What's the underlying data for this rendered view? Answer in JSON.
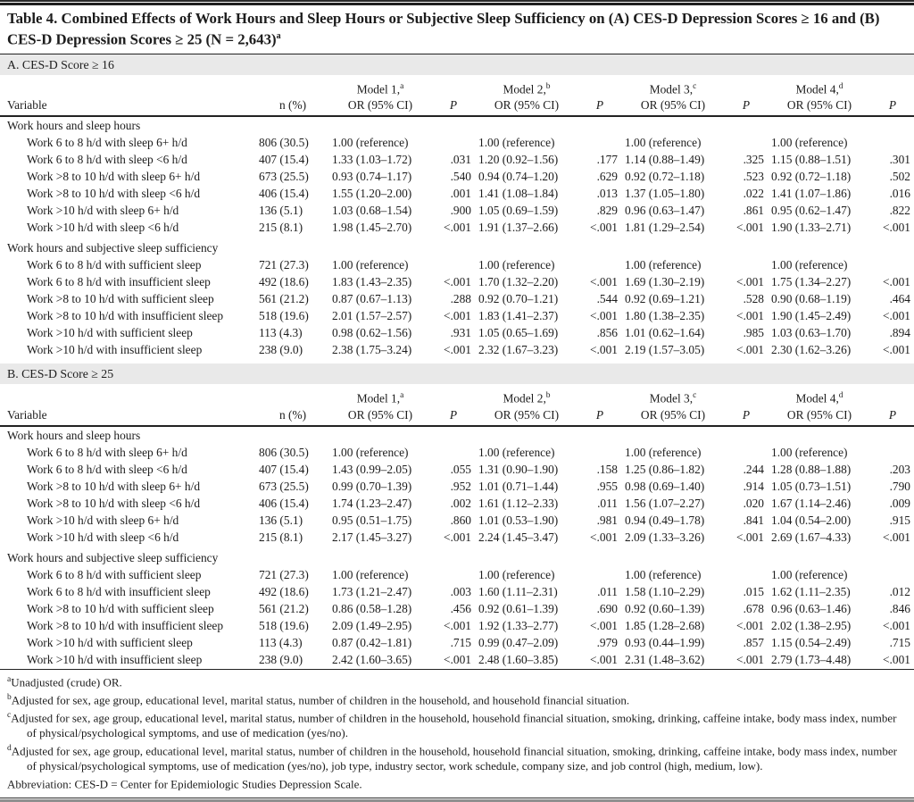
{
  "title": {
    "text": "Table 4. Combined Effects of Work Hours and Sleep Hours or Subjective Sleep Sufficiency on (A) CES-D Depression Scores ≥ 16 and (B) CES-D Depression Scores ≥ 25 (N = 2,643)",
    "superscript": "a"
  },
  "colors": {
    "band_background": "#e9e9e9",
    "rule": "#222222",
    "bottom_bar": "#8f8f8f",
    "text": "#1c1c1c"
  },
  "columns": {
    "variable": "Variable",
    "n": "n (%)",
    "or_label": "OR (95% CI)",
    "p_label": "P",
    "models": [
      {
        "label": "Model 1,",
        "sup": "a"
      },
      {
        "label": "Model 2,",
        "sup": "b"
      },
      {
        "label": "Model 3,",
        "sup": "c"
      },
      {
        "label": "Model 4,",
        "sup": "d"
      }
    ]
  },
  "sections": [
    {
      "label": "A. CES-D Score ≥ 16",
      "groups": [
        {
          "label": "Work hours and sleep hours",
          "rows": [
            {
              "variable": "Work 6 to 8 h/d with sleep 6+ h/d",
              "n": "806 (30.5)",
              "ors": [
                "1.00 (reference)",
                "1.00 (reference)",
                "1.00 (reference)",
                "1.00 (reference)"
              ],
              "ps": [
                "",
                "",
                "",
                ""
              ]
            },
            {
              "variable": "Work 6 to 8 h/d with sleep <6 h/d",
              "n": "407 (15.4)",
              "ors": [
                "1.33 (1.03–1.72)",
                "1.20 (0.92–1.56)",
                "1.14 (0.88–1.49)",
                "1.15 (0.88–1.51)"
              ],
              "ps": [
                ".031",
                ".177",
                ".325",
                ".301"
              ]
            },
            {
              "variable": "Work >8 to 10 h/d with sleep 6+ h/d",
              "n": "673 (25.5)",
              "ors": [
                "0.93 (0.74–1.17)",
                "0.94 (0.74–1.20)",
                "0.92 (0.72–1.18)",
                "0.92 (0.72–1.18)"
              ],
              "ps": [
                ".540",
                ".629",
                ".523",
                ".502"
              ]
            },
            {
              "variable": "Work >8 to 10 h/d with sleep <6 h/d",
              "n": "406 (15.4)",
              "ors": [
                "1.55 (1.20–2.00)",
                "1.41 (1.08–1.84)",
                "1.37 (1.05–1.80)",
                "1.41 (1.07–1.86)"
              ],
              "ps": [
                ".001",
                ".013",
                ".022",
                ".016"
              ]
            },
            {
              "variable": "Work >10 h/d with sleep 6+ h/d",
              "n": "136 (5.1)",
              "ors": [
                "1.03 (0.68–1.54)",
                "1.05 (0.69–1.59)",
                "0.96 (0.63–1.47)",
                "0.95 (0.62–1.47)"
              ],
              "ps": [
                ".900",
                ".829",
                ".861",
                ".822"
              ]
            },
            {
              "variable": "Work >10 h/d with sleep <6 h/d",
              "n": "215 (8.1)",
              "ors": [
                "1.98 (1.45–2.70)",
                "1.91 (1.37–2.66)",
                "1.81 (1.29–2.54)",
                "1.90 (1.33–2.71)"
              ],
              "ps": [
                "<.001",
                "<.001",
                "<.001",
                "<.001"
              ]
            }
          ]
        },
        {
          "label": "Work hours and subjective sleep sufficiency",
          "rows": [
            {
              "variable": "Work 6 to 8 h/d with sufficient sleep",
              "n": "721 (27.3)",
              "ors": [
                "1.00 (reference)",
                "1.00 (reference)",
                "1.00 (reference)",
                "1.00 (reference)"
              ],
              "ps": [
                "",
                "",
                "",
                ""
              ]
            },
            {
              "variable": "Work 6 to 8 h/d with insufficient sleep",
              "n": "492 (18.6)",
              "ors": [
                "1.83 (1.43–2.35)",
                "1.70 (1.32–2.20)",
                "1.69 (1.30–2.19)",
                "1.75 (1.34–2.27)"
              ],
              "ps": [
                "<.001",
                "<.001",
                "<.001",
                "<.001"
              ]
            },
            {
              "variable": "Work >8 to 10 h/d with sufficient sleep",
              "n": "561 (21.2)",
              "ors": [
                "0.87 (0.67–1.13)",
                "0.92 (0.70–1.21)",
                "0.92 (0.69–1.21)",
                "0.90 (0.68–1.19)"
              ],
              "ps": [
                ".288",
                ".544",
                ".528",
                ".464"
              ]
            },
            {
              "variable": "Work >8 to 10 h/d with insufficient sleep",
              "n": "518 (19.6)",
              "ors": [
                "2.01 (1.57–2.57)",
                "1.83 (1.41–2.37)",
                "1.80 (1.38–2.35)",
                "1.90 (1.45–2.49)"
              ],
              "ps": [
                "<.001",
                "<.001",
                "<.001",
                "<.001"
              ]
            },
            {
              "variable": "Work >10 h/d with sufficient sleep",
              "n": "113 (4.3)",
              "ors": [
                "0.98 (0.62–1.56)",
                "1.05 (0.65–1.69)",
                "1.01 (0.62–1.64)",
                "1.03 (0.63–1.70)"
              ],
              "ps": [
                ".931",
                ".856",
                ".985",
                ".894"
              ]
            },
            {
              "variable": "Work >10 h/d with insufficient sleep",
              "n": "238 (9.0)",
              "ors": [
                "2.38 (1.75–3.24)",
                "2.32 (1.67–3.23)",
                "2.19 (1.57–3.05)",
                "2.30 (1.62–3.26)"
              ],
              "ps": [
                "<.001",
                "<.001",
                "<.001",
                "<.001"
              ]
            }
          ]
        }
      ]
    },
    {
      "label": "B. CES-D Score ≥ 25",
      "groups": [
        {
          "label": "Work hours and sleep hours",
          "rows": [
            {
              "variable": "Work 6 to 8 h/d with sleep 6+ h/d",
              "n": "806 (30.5)",
              "ors": [
                "1.00 (reference)",
                "1.00 (reference)",
                "1.00 (reference)",
                "1.00 (reference)"
              ],
              "ps": [
                "",
                "",
                "",
                ""
              ]
            },
            {
              "variable": "Work 6 to 8 h/d with sleep <6 h/d",
              "n": "407 (15.4)",
              "ors": [
                "1.43 (0.99–2.05)",
                "1.31 (0.90–1.90)",
                "1.25 (0.86–1.82)",
                "1.28 (0.88–1.88)"
              ],
              "ps": [
                ".055",
                ".158",
                ".244",
                ".203"
              ]
            },
            {
              "variable": "Work >8 to 10 h/d with sleep 6+ h/d",
              "n": "673 (25.5)",
              "ors": [
                "0.99 (0.70–1.39)",
                "1.01 (0.71–1.44)",
                "0.98 (0.69–1.40)",
                "1.05 (0.73–1.51)"
              ],
              "ps": [
                ".952",
                ".955",
                ".914",
                ".790"
              ]
            },
            {
              "variable": "Work >8 to 10 h/d with sleep <6 h/d",
              "n": "406 (15.4)",
              "ors": [
                "1.74 (1.23–2.47)",
                "1.61 (1.12–2.33)",
                "1.56 (1.07–2.27)",
                "1.67 (1.14–2.46)"
              ],
              "ps": [
                ".002",
                ".011",
                ".020",
                ".009"
              ]
            },
            {
              "variable": "Work >10 h/d with sleep 6+ h/d",
              "n": "136 (5.1)",
              "ors": [
                "0.95 (0.51–1.75)",
                "1.01 (0.53–1.90)",
                "0.94 (0.49–1.78)",
                "1.04 (0.54–2.00)"
              ],
              "ps": [
                ".860",
                ".981",
                ".841",
                ".915"
              ]
            },
            {
              "variable": "Work >10 h/d with sleep <6 h/d",
              "n": "215 (8.1)",
              "ors": [
                "2.17 (1.45–3.27)",
                "2.24 (1.45–3.47)",
                "2.09 (1.33–3.26)",
                "2.69 (1.67–4.33)"
              ],
              "ps": [
                "<.001",
                "<.001",
                "<.001",
                "<.001"
              ]
            }
          ]
        },
        {
          "label": "Work hours and subjective sleep sufficiency",
          "rows": [
            {
              "variable": "Work 6 to 8 h/d with sufficient sleep",
              "n": "721 (27.3)",
              "ors": [
                "1.00 (reference)",
                "1.00 (reference)",
                "1.00 (reference)",
                "1.00 (reference)"
              ],
              "ps": [
                "",
                "",
                "",
                ""
              ]
            },
            {
              "variable": "Work 6 to 8 h/d with insufficient sleep",
              "n": "492 (18.6)",
              "ors": [
                "1.73 (1.21–2.47)",
                "1.60 (1.11–2.31)",
                "1.58 (1.10–2.29)",
                "1.62 (1.11–2.35)"
              ],
              "ps": [
                ".003",
                ".011",
                ".015",
                ".012"
              ]
            },
            {
              "variable": "Work >8 to 10 h/d with sufficient sleep",
              "n": "561 (21.2)",
              "ors": [
                "0.86 (0.58–1.28)",
                "0.92 (0.61–1.39)",
                "0.92 (0.60–1.39)",
                "0.96 (0.63–1.46)"
              ],
              "ps": [
                ".456",
                ".690",
                ".678",
                ".846"
              ]
            },
            {
              "variable": "Work >8 to 10 h/d with insufficient sleep",
              "n": "518 (19.6)",
              "ors": [
                "2.09 (1.49–2.95)",
                "1.92 (1.33–2.77)",
                "1.85 (1.28–2.68)",
                "2.02 (1.38–2.95)"
              ],
              "ps": [
                "<.001",
                "<.001",
                "<.001",
                "<.001"
              ]
            },
            {
              "variable": "Work >10 h/d with sufficient sleep",
              "n": "113 (4.3)",
              "ors": [
                "0.87 (0.42–1.81)",
                "0.99 (0.47–2.09)",
                "0.93 (0.44–1.99)",
                "1.15 (0.54–2.49)"
              ],
              "ps": [
                ".715",
                ".979",
                ".857",
                ".715"
              ]
            },
            {
              "variable": "Work >10 h/d with insufficient sleep",
              "n": "238 (9.0)",
              "ors": [
                "2.42 (1.60–3.65)",
                "2.48 (1.60–3.85)",
                "2.31 (1.48–3.62)",
                "2.79 (1.73–4.48)"
              ],
              "ps": [
                "<.001",
                "<.001",
                "<.001",
                "<.001"
              ]
            }
          ]
        }
      ]
    }
  ],
  "footnotes": [
    {
      "sup": "a",
      "text": "Unadjusted (crude) OR."
    },
    {
      "sup": "b",
      "text": "Adjusted for sex, age group, educational level, marital status, number of children in the household, and household financial situation."
    },
    {
      "sup": "c",
      "text": "Adjusted for sex, age group, educational level, marital status, number of children in the household, household financial situation, smoking, drinking, caffeine intake, body mass index, number of physical/psychological symptoms, and use of medication (yes/no)."
    },
    {
      "sup": "d",
      "text": "Adjusted for sex, age group, educational level, marital status, number of children in the household, household financial situation, smoking, drinking, caffeine intake, body mass index, number of physical/psychological symptoms, use of medication (yes/no), job type, industry sector, work schedule, company size, and job control (high, medium, low)."
    },
    {
      "text": "Abbreviation: CES-D = Center for Epidemiologic Studies Depression Scale."
    }
  ]
}
